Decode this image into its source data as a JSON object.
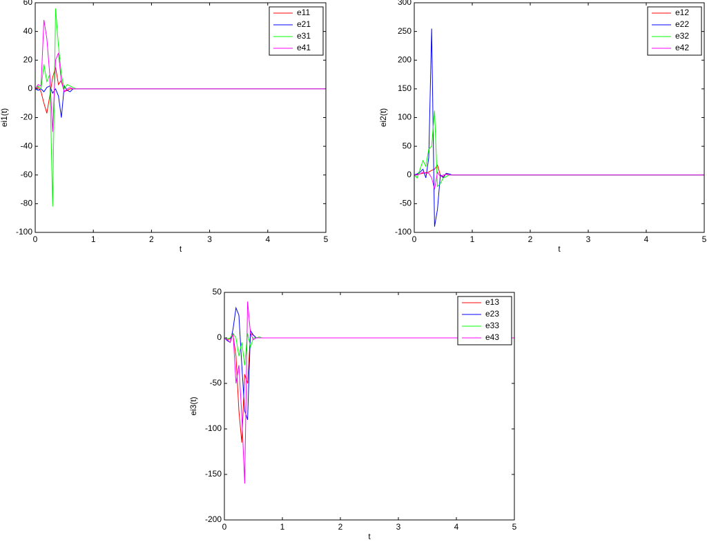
{
  "chart_data": [
    {
      "type": "line",
      "xlabel": "t",
      "ylabel": "ei1(t)",
      "x": [
        0,
        0.05,
        0.1,
        0.15,
        0.2,
        0.25,
        0.3,
        0.35,
        0.4,
        0.45,
        0.5,
        0.55,
        0.6,
        0.65,
        0.7,
        0.8,
        1,
        5
      ],
      "xlim": [
        0,
        5
      ],
      "xticks": [
        0,
        1,
        2,
        3,
        4,
        5
      ],
      "ylim": [
        -100,
        60
      ],
      "yticks": [
        -100,
        -80,
        -60,
        -40,
        -20,
        0,
        20,
        40,
        60
      ],
      "legend": "upper right",
      "series": [
        {
          "name": "e11",
          "color": "#ff0000",
          "values": [
            0,
            1,
            -2,
            -10,
            -17,
            -5,
            8,
            15,
            3,
            6,
            -2,
            -1,
            0,
            0,
            0,
            0,
            0,
            0
          ]
        },
        {
          "name": "e21",
          "color": "#0000ff",
          "values": [
            0,
            -1,
            0,
            -2,
            1,
            2,
            -3,
            0,
            -5,
            -20,
            2,
            -1,
            -2,
            0,
            0,
            0,
            0,
            0
          ]
        },
        {
          "name": "e31",
          "color": "#00ff00",
          "values": [
            0,
            2,
            0,
            17,
            5,
            10,
            -82,
            56,
            30,
            10,
            0,
            3,
            2,
            1,
            0,
            0,
            0,
            0
          ]
        },
        {
          "name": "e41",
          "color": "#ff00ff",
          "values": [
            0,
            3,
            2,
            48,
            35,
            10,
            -30,
            20,
            25,
            5,
            -2,
            0,
            1,
            0,
            0,
            0,
            0,
            0
          ]
        }
      ]
    },
    {
      "type": "line",
      "xlabel": "t",
      "ylabel": "ei2(t)",
      "x": [
        0,
        0.05,
        0.1,
        0.15,
        0.2,
        0.25,
        0.3,
        0.35,
        0.4,
        0.45,
        0.5,
        0.55,
        0.6,
        0.65,
        0.7,
        0.8,
        1,
        5
      ],
      "xlim": [
        0,
        5
      ],
      "xticks": [
        0,
        1,
        2,
        3,
        4,
        5
      ],
      "ylim": [
        -100,
        300
      ],
      "yticks": [
        -100,
        -50,
        0,
        50,
        100,
        150,
        200,
        250,
        300
      ],
      "legend": "upper right",
      "series": [
        {
          "name": "e12",
          "color": "#ff0000",
          "values": [
            0,
            1,
            2,
            3,
            4,
            5,
            8,
            10,
            17,
            0,
            -3,
            2,
            0,
            0,
            0,
            0,
            0,
            0
          ]
        },
        {
          "name": "e22",
          "color": "#0000ff",
          "values": [
            0,
            2,
            5,
            10,
            -5,
            30,
            255,
            -90,
            -60,
            0,
            -5,
            3,
            2,
            0,
            0,
            0,
            0,
            0
          ]
        },
        {
          "name": "e32",
          "color": "#00ff00",
          "values": [
            0,
            -5,
            10,
            25,
            15,
            45,
            50,
            112,
            -20,
            -15,
            -5,
            -3,
            0,
            0,
            0,
            0,
            0,
            0
          ]
        },
        {
          "name": "e42",
          "color": "#ff00ff",
          "values": [
            0,
            0,
            2,
            5,
            3,
            3,
            -5,
            -25,
            5,
            -3,
            0,
            1,
            0,
            0,
            0,
            0,
            0,
            0
          ]
        }
      ]
    },
    {
      "type": "line",
      "xlabel": "t",
      "ylabel": "ei3(t)",
      "x": [
        0,
        0.05,
        0.1,
        0.15,
        0.2,
        0.25,
        0.3,
        0.35,
        0.4,
        0.45,
        0.5,
        0.55,
        0.6,
        0.65,
        0.7,
        0.8,
        1,
        5
      ],
      "xlim": [
        0,
        5
      ],
      "xticks": [
        0,
        1,
        2,
        3,
        4,
        5
      ],
      "ylim": [
        -200,
        50
      ],
      "yticks": [
        -200,
        -150,
        -100,
        -50,
        0,
        50
      ],
      "legend": "upper right",
      "series": [
        {
          "name": "e13",
          "color": "#ff0000",
          "values": [
            0,
            -2,
            -1,
            3,
            -20,
            -80,
            -115,
            -40,
            -50,
            5,
            3,
            0,
            0,
            0,
            0,
            0,
            0,
            0
          ]
        },
        {
          "name": "e23",
          "color": "#0000ff",
          "values": [
            0,
            -3,
            -5,
            10,
            33,
            25,
            -30,
            -80,
            -90,
            8,
            3,
            0,
            0,
            0,
            0,
            0,
            0,
            0
          ]
        },
        {
          "name": "e33",
          "color": "#00ff00",
          "values": [
            0,
            -1,
            0,
            5,
            0,
            -20,
            -5,
            -30,
            5,
            -10,
            0,
            0,
            1,
            0,
            0,
            0,
            0,
            0
          ]
        },
        {
          "name": "e43",
          "color": "#ff00ff",
          "values": [
            0,
            -2,
            -5,
            5,
            -50,
            -30,
            -85,
            -160,
            40,
            5,
            -2,
            0,
            0,
            0,
            0,
            0,
            0,
            0
          ]
        }
      ]
    }
  ]
}
